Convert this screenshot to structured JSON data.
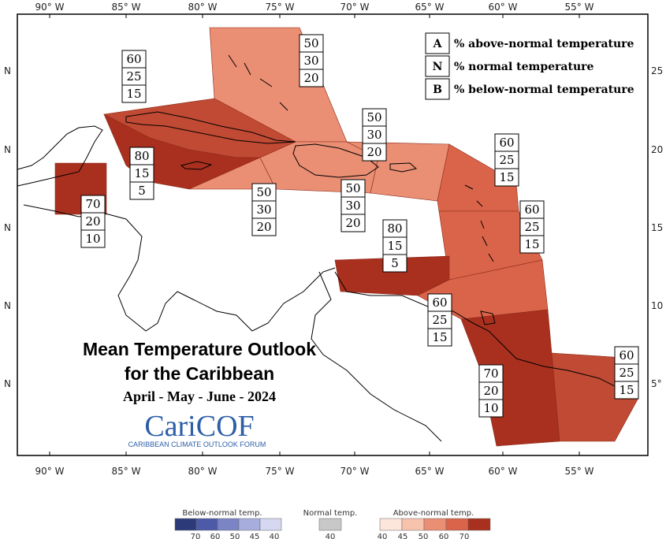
{
  "title_line1": "Mean Temperature Outlook",
  "title_line2": "for the Caribbean",
  "period": "April - May - June - 2024",
  "logo": {
    "main": "CariCOF",
    "sub": "CARIBBEAN CLIMATE OUTLOOK FORUM"
  },
  "legend": {
    "items": [
      {
        "key": "A",
        "label": "% above-normal temperature"
      },
      {
        "key": "N",
        "label": "% normal temperature"
      },
      {
        "key": "B",
        "label": "% below-normal temperature"
      }
    ]
  },
  "axes": {
    "x_labels": [
      "90° W",
      "85° W",
      "80° W",
      "75° W",
      "70° W",
      "65° W",
      "60° W",
      "55° W"
    ],
    "y_labels_left": [
      "N",
      "N",
      "N",
      "N",
      "N"
    ],
    "y_labels_right": [
      "25",
      "20",
      "15",
      "10",
      "5°"
    ]
  },
  "regions": [
    {
      "name": "bahamas",
      "color": "#ea8e74",
      "probs": [
        "50",
        "30",
        "20"
      ]
    },
    {
      "name": "cuba-jamaica-north",
      "color": "#c04a33",
      "probs": [
        "60",
        "25",
        "15"
      ]
    },
    {
      "name": "cayman-jamaica",
      "color": "#a9301f",
      "probs": [
        "80",
        "15",
        "5"
      ]
    },
    {
      "name": "belize",
      "color": "#a9301f",
      "probs": [
        "70",
        "20",
        "10"
      ]
    },
    {
      "name": "jamaica-south",
      "color": "#ea8e74",
      "probs": [
        "50",
        "30",
        "20"
      ]
    },
    {
      "name": "hispaniola",
      "color": "#ea8e74",
      "probs": [
        "50",
        "30",
        "20"
      ]
    },
    {
      "name": "puerto-rico",
      "color": "#ea8e74",
      "probs": [
        "50",
        "30",
        "20"
      ]
    },
    {
      "name": "leeward-islands",
      "color": "#d9644a",
      "probs": [
        "60",
        "25",
        "15"
      ]
    },
    {
      "name": "windward-islands",
      "color": "#d9644a",
      "probs": [
        "60",
        "25",
        "15"
      ]
    },
    {
      "name": "abc-islands",
      "color": "#a9301f",
      "probs": [
        "80",
        "15",
        "5"
      ]
    },
    {
      "name": "trinidad-barbados",
      "color": "#d9644a",
      "probs": [
        "60",
        "25",
        "15"
      ]
    },
    {
      "name": "guyana",
      "color": "#a9301f",
      "probs": [
        "70",
        "20",
        "10"
      ]
    },
    {
      "name": "suriname-french-guiana",
      "color": "#c04a33",
      "probs": [
        "60",
        "25",
        "15"
      ]
    }
  ],
  "colorbar": {
    "below": {
      "title": "Below-normal temp.",
      "ticks": [
        "70",
        "60",
        "50",
        "45",
        "40"
      ],
      "colors": [
        "#2c3a7a",
        "#4d5aa8",
        "#7b85c6",
        "#a7aedd",
        "#d5d8f0"
      ]
    },
    "normal": {
      "title": "Normal temp.",
      "ticks": [
        "40"
      ],
      "color": "#c8c8c8"
    },
    "above": {
      "title": "Above-normal temp.",
      "ticks": [
        "40",
        "45",
        "50",
        "60",
        "70"
      ],
      "colors": [
        "#fce6dc",
        "#f7c3ad",
        "#ea8e74",
        "#d9644a",
        "#a9301f"
      ]
    }
  }
}
